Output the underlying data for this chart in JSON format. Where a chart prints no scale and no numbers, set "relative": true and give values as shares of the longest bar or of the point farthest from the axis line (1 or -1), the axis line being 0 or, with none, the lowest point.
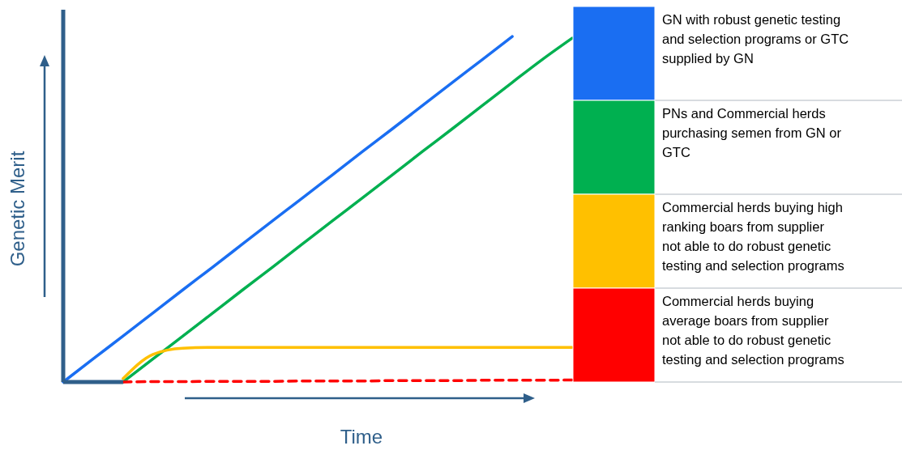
{
  "chart_data": {
    "type": "line",
    "relative": true,
    "xlabel": "Time",
    "ylabel": "Genetic Merit",
    "legend": "right",
    "categories": [
      null,
      null,
      null,
      null,
      null,
      null,
      null,
      null,
      null,
      null,
      null,
      null,
      null,
      null,
      null,
      null,
      null,
      null
    ],
    "series": [
      {
        "name": "GN with robust genetic testing and selection programs or GTC supplied by GN",
        "color": "#1a6ef2",
        "values": [
          0,
          0.067,
          0.133,
          0.2,
          0.267,
          0.333,
          0.4,
          0.467,
          0.533,
          0.6,
          0.667,
          0.733,
          0.8,
          0.867,
          0.933,
          1,
          null,
          null
        ]
      },
      {
        "name": "PNs and Commercial herds purchasing semen from GN or GTC",
        "color": "#00b050",
        "values": [
          null,
          null,
          0,
          0.067,
          0.133,
          0.2,
          0.267,
          0.333,
          0.4,
          0.467,
          0.533,
          0.6,
          0.667,
          0.733,
          0.8,
          0.867,
          0.933,
          0.995
        ]
      },
      {
        "name": "Commercial herds buying high ranking boars from supplier not able to do robust genetic testing and selection programs",
        "color": "#ffc000",
        "values": [
          null,
          null,
          0.01,
          0.08,
          0.098,
          0.1,
          0.1,
          0.1,
          0.1,
          0.1,
          0.1,
          0.1,
          0.1,
          0.1,
          0.1,
          0.1,
          0.1,
          0.1
        ]
      },
      {
        "name": "Commercial herds buying average boars from supplier not able to do robust genetic testing and selection programs",
        "color": "#ff0000",
        "line_style": "dashed",
        "values": [
          null,
          null,
          0,
          0.001,
          0.001,
          0.002,
          0.002,
          0.002,
          0.003,
          0.003,
          0.003,
          0.004,
          0.004,
          0.004,
          0.005,
          0.005,
          0.005,
          0.006
        ]
      }
    ]
  }
}
